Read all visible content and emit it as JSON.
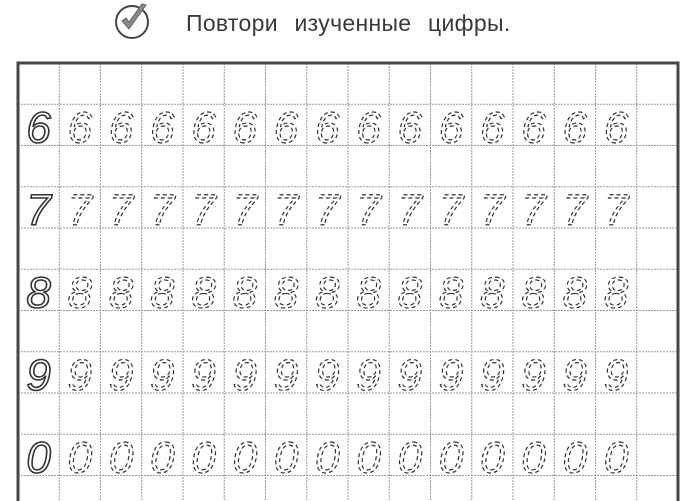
{
  "header": {
    "title": "Повтори изученные цифры.",
    "icon": "check-circle-icon"
  },
  "worksheet": {
    "columns": 16,
    "rows": [
      {
        "digit": "6",
        "traces": 14
      },
      {
        "digit": "7",
        "traces": 14
      },
      {
        "digit": "8",
        "traces": 14
      },
      {
        "digit": "9",
        "traces": 14
      },
      {
        "digit": "0",
        "traces": 14
      }
    ],
    "colors": {
      "grid": "#9a9a9a",
      "border": "#4a4444",
      "ink": "#333333"
    }
  }
}
